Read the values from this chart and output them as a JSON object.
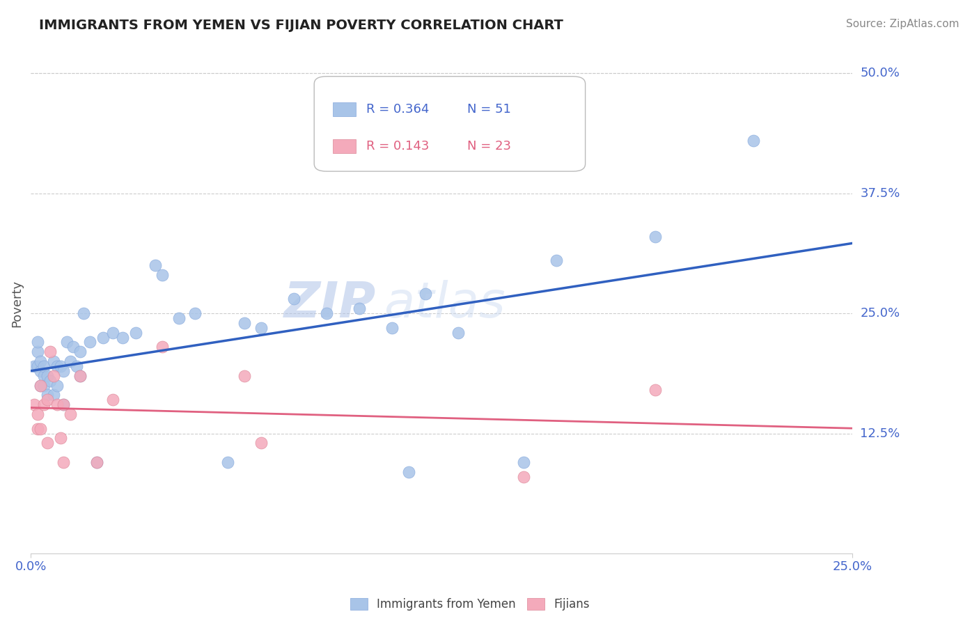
{
  "title": "IMMIGRANTS FROM YEMEN VS FIJIAN POVERTY CORRELATION CHART",
  "source": "Source: ZipAtlas.com",
  "ylabel": "Poverty",
  "xlim": [
    0.0,
    0.25
  ],
  "ylim": [
    0.0,
    0.52
  ],
  "ytick_labels": [
    "12.5%",
    "25.0%",
    "37.5%",
    "50.0%"
  ],
  "ytick_vals": [
    0.125,
    0.25,
    0.375,
    0.5
  ],
  "xtick_labels": [
    "0.0%",
    "25.0%"
  ],
  "xtick_vals": [
    0.0,
    0.25
  ],
  "legend_r1": "R = 0.364",
  "legend_n1": "N = 51",
  "legend_r2": "R = 0.143",
  "legend_n2": "N = 23",
  "blue_color": "#A8C4E8",
  "pink_color": "#F4AABB",
  "line_blue": "#3060C0",
  "line_pink": "#E06080",
  "grid_color": "#CCCCCC",
  "title_color": "#222222",
  "axis_label_color": "#4466CC",
  "watermark_zip": "ZIP",
  "watermark_atlas": "atlas",
  "blue_scatter_x": [
    0.001,
    0.002,
    0.002,
    0.002,
    0.003,
    0.003,
    0.003,
    0.004,
    0.004,
    0.004,
    0.005,
    0.005,
    0.006,
    0.007,
    0.007,
    0.008,
    0.008,
    0.009,
    0.01,
    0.01,
    0.011,
    0.012,
    0.013,
    0.014,
    0.015,
    0.015,
    0.016,
    0.018,
    0.02,
    0.022,
    0.025,
    0.028,
    0.032,
    0.038,
    0.04,
    0.045,
    0.05,
    0.06,
    0.065,
    0.07,
    0.08,
    0.09,
    0.1,
    0.11,
    0.115,
    0.12,
    0.13,
    0.15,
    0.16,
    0.19,
    0.22
  ],
  "blue_scatter_y": [
    0.195,
    0.195,
    0.21,
    0.22,
    0.175,
    0.19,
    0.2,
    0.175,
    0.185,
    0.195,
    0.165,
    0.185,
    0.18,
    0.165,
    0.2,
    0.195,
    0.175,
    0.195,
    0.155,
    0.19,
    0.22,
    0.2,
    0.215,
    0.195,
    0.185,
    0.21,
    0.25,
    0.22,
    0.095,
    0.225,
    0.23,
    0.225,
    0.23,
    0.3,
    0.29,
    0.245,
    0.25,
    0.095,
    0.24,
    0.235,
    0.265,
    0.25,
    0.255,
    0.235,
    0.085,
    0.27,
    0.23,
    0.095,
    0.305,
    0.33,
    0.43
  ],
  "pink_scatter_x": [
    0.001,
    0.002,
    0.002,
    0.003,
    0.003,
    0.004,
    0.005,
    0.005,
    0.006,
    0.007,
    0.008,
    0.009,
    0.01,
    0.01,
    0.012,
    0.015,
    0.02,
    0.025,
    0.04,
    0.065,
    0.07,
    0.15,
    0.19
  ],
  "pink_scatter_y": [
    0.155,
    0.145,
    0.13,
    0.13,
    0.175,
    0.155,
    0.115,
    0.16,
    0.21,
    0.185,
    0.155,
    0.12,
    0.095,
    0.155,
    0.145,
    0.185,
    0.095,
    0.16,
    0.215,
    0.185,
    0.115,
    0.08,
    0.17
  ]
}
